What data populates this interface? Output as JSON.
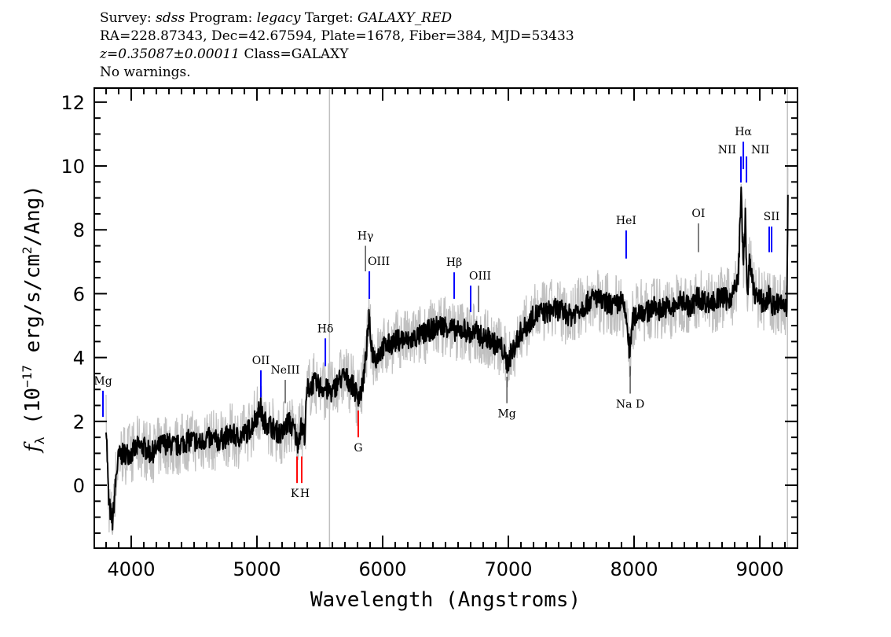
{
  "header": {
    "survey_label": "Survey: ",
    "survey": "sdss",
    "program_label": " Program: ",
    "program": "legacy",
    "target_label": " Target: ",
    "target": "GALAXY_RED",
    "line2": "RA=228.87343, Dec=42.67594, Plate=1678, Fiber=384, MJD=53433",
    "redshift": "z=0.35087±0.00011",
    "class": " Class=GALAXY",
    "warnings": "No warnings."
  },
  "chart_data": {
    "type": "line",
    "xlabel": "Wavelength (Angstroms)",
    "ylabel": {
      "symbol": "f",
      "subscript": "λ",
      "pre": " (10",
      "exp": "−17",
      "mid": " erg/s/cm",
      "exp2": "2",
      "post": "/Ang)"
    },
    "xlim": [
      3706,
      9300
    ],
    "ylim": [
      -1.97,
      12.44
    ],
    "xticks": [
      "4000",
      "5000",
      "6000",
      "7000",
      "8000",
      "9000"
    ],
    "yticks": [
      "0",
      "2",
      "4",
      "6",
      "8",
      "10",
      "12"
    ],
    "colors": {
      "flux": "#000000",
      "error": "#c0c0c0",
      "emission": "#0000ff",
      "absorption": "#ff0000"
    },
    "series": [
      {
        "x": [
          3800,
          3820,
          3850,
          3880,
          3900,
          3950,
          4000,
          4050,
          4100,
          4150,
          4200,
          4250,
          4300,
          4350,
          4400,
          4450,
          4500,
          4550,
          4600,
          4650,
          4700,
          4750,
          4800,
          4850,
          4900,
          4950,
          5000,
          5030,
          5050,
          5100,
          5150,
          5200,
          5250,
          5300,
          5320,
          5350,
          5380,
          5400,
          5450,
          5500,
          5550,
          5600,
          5650,
          5700,
          5750,
          5800,
          5830,
          5860,
          5890,
          5920,
          5950,
          6000,
          6050,
          6100,
          6150,
          6200,
          6250,
          6300,
          6350,
          6400,
          6450,
          6500,
          6550,
          6600,
          6650,
          6700,
          6750,
          6800,
          6850,
          6900,
          6950,
          6990,
          7030,
          7100,
          7150,
          7200,
          7250,
          7300,
          7350,
          7400,
          7450,
          7500,
          7550,
          7600,
          7650,
          7700,
          7750,
          7800,
          7850,
          7900,
          7940,
          7965,
          7990,
          8050,
          8100,
          8150,
          8200,
          8250,
          8300,
          8350,
          8400,
          8450,
          8500,
          8550,
          8600,
          8650,
          8700,
          8750,
          8800,
          8830,
          8850,
          8870,
          8885,
          8900,
          8920,
          8950,
          9000,
          9050,
          9080,
          9100,
          9150,
          9200,
          9215,
          9225
        ],
        "flux": [
          2.0,
          -0.5,
          -1.2,
          0.3,
          0.9,
          1.0,
          1.0,
          1.2,
          1.2,
          1.0,
          1.1,
          1.3,
          1.3,
          1.2,
          1.3,
          1.4,
          1.4,
          1.3,
          1.5,
          1.4,
          1.4,
          1.5,
          1.6,
          1.5,
          1.6,
          1.8,
          2.2,
          2.4,
          2.0,
          1.9,
          1.7,
          1.6,
          2.0,
          1.7,
          1.3,
          1.8,
          1.6,
          3.0,
          3.2,
          3.1,
          3.0,
          2.9,
          3.3,
          3.4,
          3.2,
          2.8,
          2.9,
          3.7,
          5.2,
          4.1,
          4.0,
          4.3,
          4.4,
          4.5,
          4.6,
          4.5,
          4.6,
          4.7,
          4.8,
          4.9,
          5.0,
          5.0,
          4.9,
          4.8,
          4.9,
          4.7,
          4.8,
          4.6,
          4.6,
          4.4,
          4.3,
          3.8,
          4.2,
          4.8,
          5.0,
          5.3,
          5.4,
          5.4,
          5.5,
          5.5,
          5.4,
          5.3,
          5.5,
          5.6,
          5.8,
          5.9,
          5.7,
          5.7,
          5.6,
          5.8,
          5.2,
          4.1,
          5.2,
          5.5,
          5.4,
          5.6,
          5.5,
          5.6,
          5.5,
          5.7,
          5.8,
          5.5,
          5.9,
          5.8,
          5.7,
          5.8,
          5.9,
          5.8,
          6.1,
          6.5,
          9.3,
          6.8,
          8.4,
          6.0,
          7.0,
          6.1,
          5.8,
          5.7,
          6.0,
          5.6,
          5.7,
          5.6,
          5.5,
          9.8
        ],
        "error_band": 0.9
      }
    ],
    "sky_lines": [
      5577,
      9220
    ],
    "lines": [
      {
        "label": "Mg",
        "wavelength": 3775,
        "kind": "emission",
        "color": "#0000ff",
        "y": [
          2.14,
          2.96
        ]
      },
      {
        "label": "OII",
        "wavelength": 5031,
        "kind": "emission",
        "color": "#0000ff",
        "y": [
          2.75,
          3.6
        ]
      },
      {
        "label": "NeIII",
        "wavelength": 5225,
        "kind": "emission",
        "color": "#000000",
        "y": [
          2.57,
          3.3
        ]
      },
      {
        "label": "Hδ",
        "wavelength": 5544,
        "kind": "emission",
        "color": "#0000ff",
        "y": [
          3.73,
          4.6
        ]
      },
      {
        "label": "Hγ",
        "wavelength": 5863,
        "kind": "emission",
        "color": "#000000",
        "y": [
          6.7,
          7.5
        ]
      },
      {
        "label": "OIII",
        "wavelength": 5894,
        "kind": "emission",
        "color": "#0000ff",
        "y": [
          5.84,
          6.7
        ]
      },
      {
        "label": "Hβ",
        "wavelength": 6569,
        "kind": "emission",
        "color": "#0000ff",
        "y": [
          5.84,
          6.67
        ]
      },
      {
        "label": "OIII",
        "wavelength": 6700,
        "kind": "emission",
        "color": "#0000ff",
        "y": [
          5.42,
          6.25
        ]
      },
      {
        "label": "",
        "wavelength": 6763,
        "kind": "emission",
        "color": "#000000",
        "y": [
          5.42,
          6.25
        ]
      },
      {
        "label": "HeI",
        "wavelength": 7937,
        "kind": "emission",
        "color": "#0000ff",
        "y": [
          7.1,
          7.98
        ]
      },
      {
        "label": "OI",
        "wavelength": 8512,
        "kind": "emission",
        "color": "#000000",
        "y": [
          7.3,
          8.2
        ]
      },
      {
        "label": "NII",
        "wavelength": 8850,
        "kind": "emission",
        "color": "#0000ff",
        "y": [
          9.48,
          10.3
        ]
      },
      {
        "label": "Hα",
        "wavelength": 8869,
        "kind": "emission",
        "color": "#0000ff",
        "y": [
          9.9,
          10.76
        ]
      },
      {
        "label": "NII",
        "wavelength": 8894,
        "kind": "emission",
        "color": "#0000ff",
        "y": [
          9.48,
          10.3
        ]
      },
      {
        "label": "SII",
        "wavelength": 9075,
        "kind": "emission",
        "color": "#0000ff",
        "y": [
          7.3,
          8.1
        ]
      },
      {
        "label": "",
        "wavelength": 9094,
        "kind": "emission",
        "color": "#0000ff",
        "y": [
          7.3,
          8.1
        ]
      },
      {
        "label": "K",
        "wavelength": 5319,
        "kind": "absorption",
        "color": "#ff0000",
        "y": [
          0.07,
          0.9
        ]
      },
      {
        "label": "H",
        "wavelength": 5356,
        "kind": "absorption",
        "color": "#ff0000",
        "y": [
          0.07,
          0.9
        ]
      },
      {
        "label": "G",
        "wavelength": 5806,
        "kind": "absorption",
        "color": "#ff0000",
        "y": [
          1.5,
          2.34
        ]
      },
      {
        "label": "Mg",
        "wavelength": 6988,
        "kind": "absorption",
        "color": "#000000",
        "y": [
          2.57,
          3.4
        ]
      },
      {
        "label": "Na D",
        "wavelength": 7969,
        "kind": "absorption",
        "color": "#000000",
        "y": [
          2.87,
          3.73
        ]
      }
    ]
  }
}
